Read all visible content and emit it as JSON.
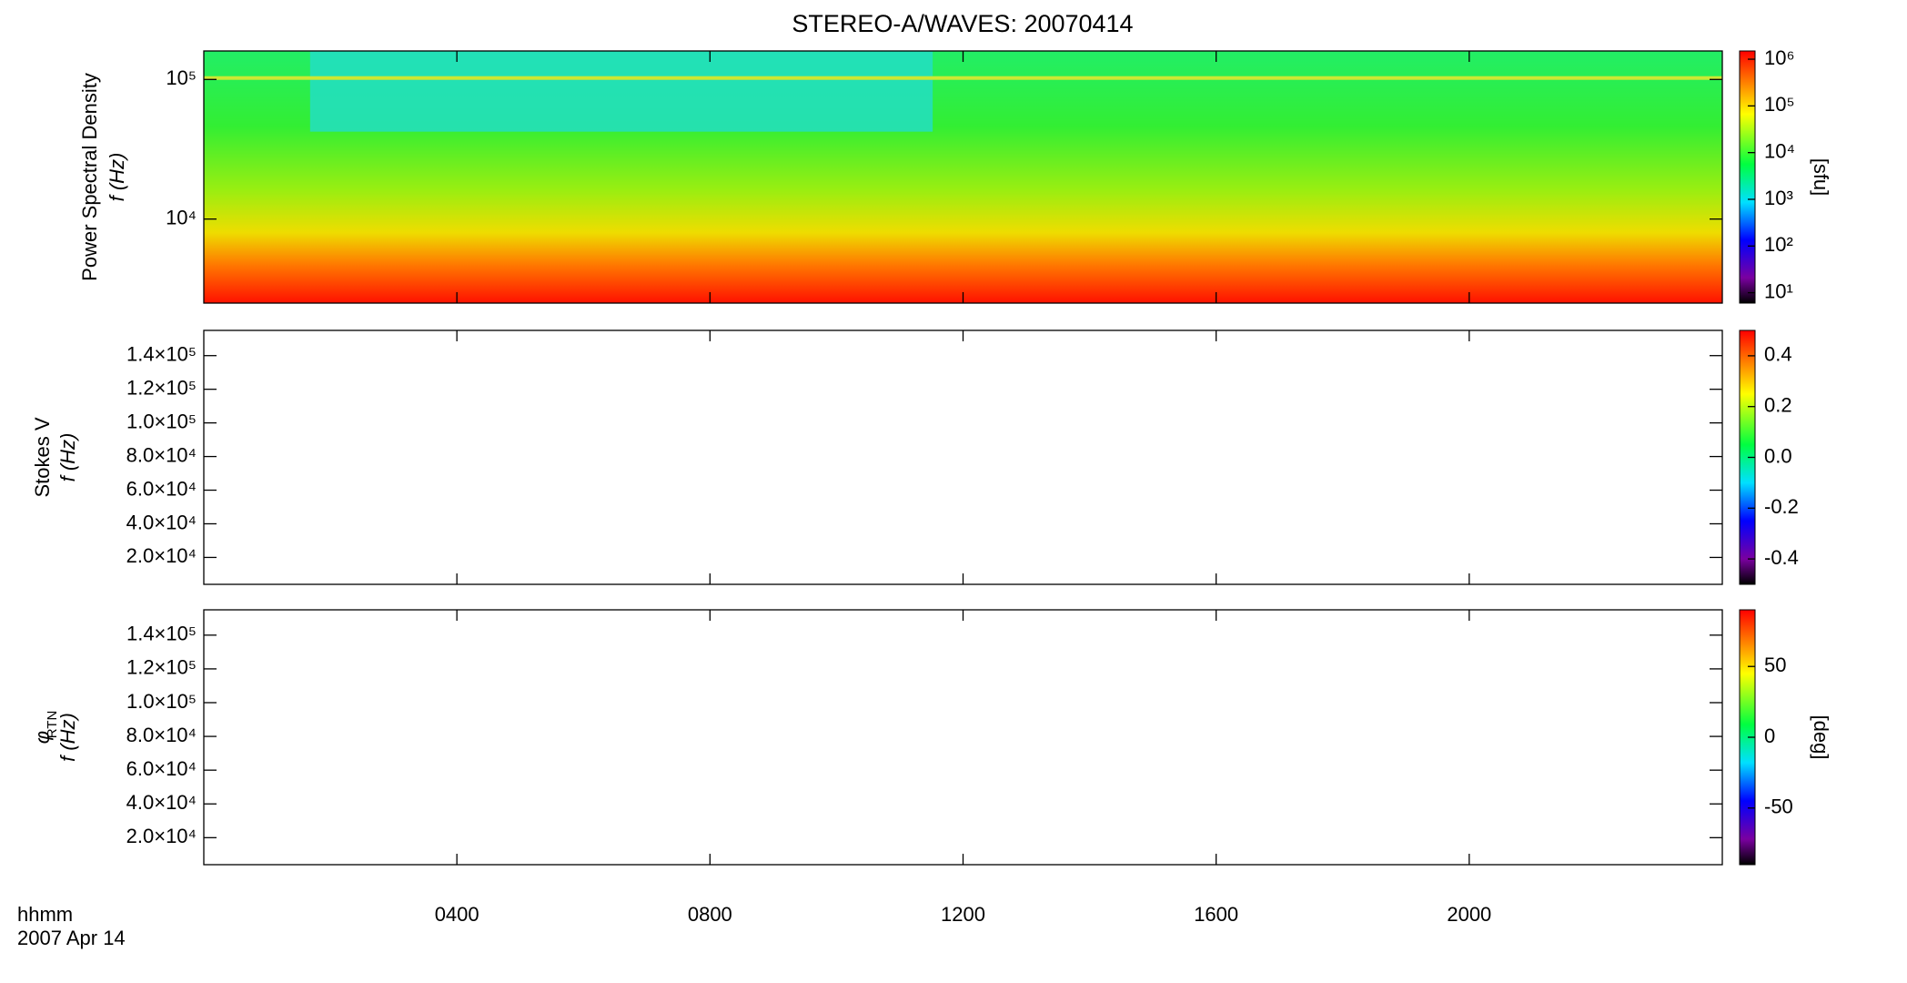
{
  "chart_data": {
    "type": "heatmap",
    "title": "STEREO-A/WAVES: 20070414",
    "xlabel": [
      "hhmm",
      "2007 Apr 14"
    ],
    "xlim": [
      0,
      24
    ],
    "xticks": [
      {
        "value": 4,
        "label": "0400"
      },
      {
        "value": 8,
        "label": "0800"
      },
      {
        "value": 12,
        "label": "1200"
      },
      {
        "value": 16,
        "label": "1600"
      },
      {
        "value": 20,
        "label": "2000"
      }
    ],
    "panels": [
      {
        "type": "heatmap",
        "ylabel": [
          "Power Spectral Density",
          "f (Hz)"
        ],
        "ylog": true,
        "ylim": [
          2500,
          160000
        ],
        "yticks": [
          {
            "value": 10000,
            "label": "10⁴"
          },
          {
            "value": 100000,
            "label": "10⁵"
          }
        ],
        "zlog": true,
        "zlim": [
          6,
          1500000
        ],
        "zlabel": "[sfu]",
        "zticks": [
          {
            "value": 10,
            "label": "10¹"
          },
          {
            "value": 100,
            "label": "10²"
          },
          {
            "value": 1000,
            "label": "10³"
          },
          {
            "value": 10000,
            "label": "10⁴"
          },
          {
            "value": 100000,
            "label": "10⁵"
          },
          {
            "value": 1000000,
            "label": "10⁶"
          }
        ]
      },
      {
        "type": "heatmap",
        "ylabel": [
          "Stokes V",
          "f (Hz)"
        ],
        "ylog": false,
        "ylim": [
          4000,
          155000
        ],
        "yticks": [
          {
            "value": 20000,
            "label": "2.0×10⁴"
          },
          {
            "value": 40000,
            "label": "4.0×10⁴"
          },
          {
            "value": 60000,
            "label": "6.0×10⁴"
          },
          {
            "value": 80000,
            "label": "8.0×10⁴"
          },
          {
            "value": 100000,
            "label": "1.0×10⁵"
          },
          {
            "value": 120000,
            "label": "1.2×10⁵"
          },
          {
            "value": 140000,
            "label": "1.4×10⁵"
          }
        ],
        "zlog": false,
        "zlim": [
          -0.5,
          0.5
        ],
        "zticks": [
          -0.4,
          -0.2,
          {
            "value": 0,
            "label": "0.0"
          },
          0.2,
          0.4
        ]
      },
      {
        "type": "heatmap",
        "ylabel": [
          "φ",
          "f (Hz)"
        ],
        "ylabel_sub": "RTN",
        "ylog": false,
        "ylim": [
          4000,
          155000
        ],
        "yticks": [
          {
            "value": 20000,
            "label": "2.0×10⁴"
          },
          {
            "value": 40000,
            "label": "4.0×10⁴"
          },
          {
            "value": 60000,
            "label": "6.0×10⁴"
          },
          {
            "value": 80000,
            "label": "8.0×10⁴"
          },
          {
            "value": 100000,
            "label": "1.0×10⁵"
          },
          {
            "value": 120000,
            "label": "1.2×10⁵"
          },
          {
            "value": 140000,
            "label": "1.4×10⁵"
          }
        ],
        "zlog": false,
        "zlim": [
          -90,
          90
        ],
        "zlabel": "[deg]",
        "zticks": [
          -50,
          0,
          50
        ]
      }
    ]
  }
}
